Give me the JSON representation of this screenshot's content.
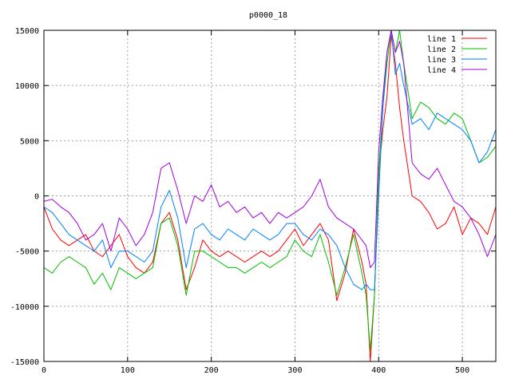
{
  "chart_data": {
    "type": "line",
    "title": "p0000_18",
    "xlabel": "",
    "ylabel": "",
    "xlim": [
      0,
      540
    ],
    "ylim": [
      -15000,
      15000
    ],
    "xticks": [
      0,
      100,
      200,
      300,
      400,
      500
    ],
    "yticks": [
      -15000,
      -10000,
      -5000,
      0,
      5000,
      10000,
      15000
    ],
    "grid": true,
    "legend_position": "top-right",
    "series": [
      {
        "name": "line 1",
        "color": "#ff0000",
        "x": [
          0,
          10,
          20,
          30,
          40,
          50,
          60,
          70,
          80,
          90,
          100,
          110,
          120,
          130,
          140,
          150,
          160,
          170,
          180,
          190,
          200,
          210,
          220,
          230,
          240,
          250,
          260,
          270,
          280,
          290,
          300,
          310,
          320,
          330,
          340,
          350,
          360,
          370,
          380,
          385,
          390,
          395,
          400,
          405,
          410,
          415,
          420,
          425,
          430,
          440,
          450,
          460,
          470,
          480,
          490,
          500,
          510,
          520,
          530,
          540
        ],
        "y": [
          -1000,
          -3000,
          -4000,
          -4500,
          -4000,
          -3500,
          -5000,
          -5500,
          -4500,
          -3500,
          -5500,
          -6500,
          -7000,
          -6000,
          -2500,
          -1500,
          -4000,
          -8500,
          -6500,
          -4000,
          -5000,
          -5500,
          -5000,
          -5500,
          -6000,
          -5500,
          -5000,
          -5500,
          -5000,
          -4000,
          -3000,
          -4500,
          -3500,
          -2500,
          -4000,
          -9500,
          -7000,
          -3000,
          -6000,
          -8000,
          -15000,
          -9000,
          2000,
          6000,
          9000,
          14500,
          12000,
          8000,
          5000,
          0,
          -500,
          -1500,
          -3000,
          -2500,
          -1000,
          -3500,
          -2000,
          -2500,
          -3500,
          -1000
        ]
      },
      {
        "name": "line 2",
        "color": "#00c000",
        "x": [
          0,
          10,
          20,
          30,
          40,
          50,
          60,
          70,
          80,
          90,
          100,
          110,
          120,
          130,
          140,
          150,
          160,
          170,
          180,
          190,
          200,
          210,
          220,
          230,
          240,
          250,
          260,
          270,
          280,
          290,
          300,
          310,
          320,
          330,
          340,
          350,
          360,
          370,
          380,
          385,
          390,
          395,
          400,
          405,
          410,
          415,
          420,
          425,
          430,
          440,
          450,
          460,
          470,
          480,
          490,
          500,
          510,
          520,
          530,
          540
        ],
        "y": [
          -6500,
          -7000,
          -6000,
          -5500,
          -6000,
          -6500,
          -8000,
          -7000,
          -8500,
          -6500,
          -7000,
          -7500,
          -7000,
          -6500,
          -2500,
          -2000,
          -4500,
          -9000,
          -5000,
          -5000,
          -5500,
          -6000,
          -6500,
          -6500,
          -7000,
          -6500,
          -6000,
          -6500,
          -6000,
          -5500,
          -4000,
          -5000,
          -5500,
          -3500,
          -6000,
          -9000,
          -6500,
          -3500,
          -7000,
          -9000,
          -14000,
          -9000,
          2000,
          8000,
          12000,
          15000,
          13000,
          15000,
          12000,
          7000,
          8500,
          8000,
          7000,
          6500,
          7500,
          7000,
          5000,
          3000,
          3500,
          4500
        ]
      },
      {
        "name": "line 3",
        "color": "#0080ff",
        "x": [
          0,
          10,
          20,
          30,
          40,
          50,
          60,
          70,
          80,
          90,
          100,
          110,
          120,
          130,
          140,
          150,
          160,
          170,
          180,
          190,
          200,
          210,
          220,
          230,
          240,
          250,
          260,
          270,
          280,
          290,
          300,
          310,
          320,
          330,
          340,
          350,
          360,
          370,
          380,
          385,
          390,
          395,
          400,
          405,
          410,
          415,
          420,
          425,
          430,
          440,
          450,
          460,
          470,
          480,
          490,
          500,
          510,
          520,
          530,
          540
        ],
        "y": [
          -1000,
          -1500,
          -2500,
          -3500,
          -4000,
          -4500,
          -5000,
          -4000,
          -6500,
          -5000,
          -5000,
          -5500,
          -6000,
          -5000,
          -1000,
          500,
          -2000,
          -6500,
          -3000,
          -2500,
          -3500,
          -4000,
          -3000,
          -3500,
          -4000,
          -3000,
          -3500,
          -4000,
          -3500,
          -2500,
          -2500,
          -3500,
          -4000,
          -3000,
          -3500,
          -4500,
          -6500,
          -8000,
          -8500,
          -8000,
          -8500,
          -8500,
          0,
          8000,
          13000,
          15000,
          11000,
          12000,
          10000,
          6500,
          7000,
          6000,
          7500,
          7000,
          6500,
          6000,
          5000,
          3000,
          4000,
          6000
        ]
      },
      {
        "name": "line 4",
        "color": "#a000e0",
        "x": [
          0,
          10,
          20,
          30,
          40,
          50,
          60,
          70,
          80,
          90,
          100,
          110,
          120,
          130,
          140,
          150,
          160,
          170,
          180,
          190,
          200,
          210,
          220,
          230,
          240,
          250,
          260,
          270,
          280,
          290,
          300,
          310,
          320,
          330,
          340,
          350,
          360,
          370,
          380,
          385,
          390,
          395,
          400,
          405,
          410,
          415,
          420,
          425,
          430,
          440,
          450,
          460,
          470,
          480,
          490,
          500,
          510,
          520,
          530,
          540
        ],
        "y": [
          -500,
          -300,
          -1000,
          -1500,
          -2500,
          -4000,
          -3500,
          -2500,
          -5000,
          -2000,
          -3000,
          -4500,
          -3500,
          -1500,
          2500,
          3000,
          500,
          -2500,
          0,
          -500,
          1000,
          -1000,
          -500,
          -1500,
          -1000,
          -2000,
          -1500,
          -2500,
          -1500,
          -2000,
          -1500,
          -1000,
          0,
          1500,
          -1000,
          -2000,
          -2500,
          -3000,
          -4000,
          -4500,
          -6500,
          -6000,
          4000,
          9000,
          13000,
          15000,
          13000,
          14000,
          12000,
          3000,
          2000,
          1500,
          2500,
          1000,
          -500,
          -1000,
          -2000,
          -3500,
          -5500,
          -3500
        ]
      }
    ]
  }
}
